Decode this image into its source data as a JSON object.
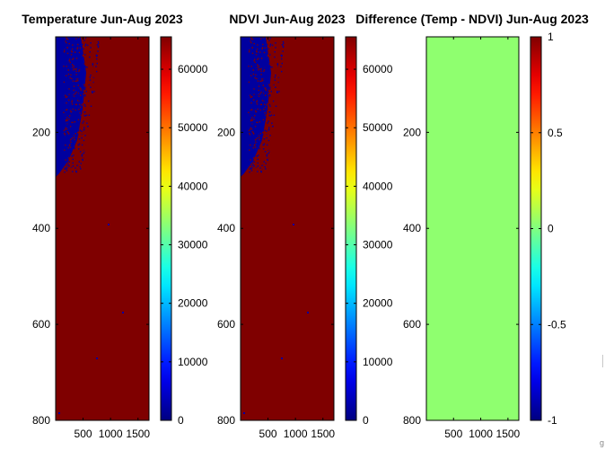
{
  "figure": {
    "background": "#ffffff",
    "colormap": "jet"
  },
  "chart_data": [
    {
      "type": "heatmap",
      "title": "Temperature Jun-Aug 2023",
      "xticks": [
        500,
        1000,
        1500
      ],
      "yticks": [
        200,
        400,
        600,
        800
      ],
      "xlim": [
        1,
        1700
      ],
      "ylim": [
        800,
        1
      ],
      "fill_value": 65535,
      "low_value": 0,
      "fill_color": "#7f0000",
      "low_color": "#00009f",
      "low_region": "upper-left wedge",
      "colorbar": {
        "ticks": [
          0,
          10000,
          20000,
          30000,
          40000,
          50000,
          60000
        ],
        "range": [
          0,
          65535
        ]
      }
    },
    {
      "type": "heatmap",
      "title": "NDVI Jun-Aug 2023",
      "xticks": [
        500,
        1000,
        1500
      ],
      "yticks": [
        200,
        400,
        600,
        800
      ],
      "xlim": [
        1,
        1700
      ],
      "ylim": [
        800,
        1
      ],
      "fill_value": 65535,
      "low_value": 0,
      "fill_color": "#7f0000",
      "low_color": "#00009f",
      "low_region": "upper-left wedge",
      "colorbar": {
        "ticks": [
          0,
          10000,
          20000,
          30000,
          40000,
          50000,
          60000
        ],
        "range": [
          0,
          65535
        ]
      }
    },
    {
      "type": "heatmap",
      "title": "Difference (Temp - NDVI) Jun-Aug 2023",
      "xticks": [
        500,
        1000,
        1500
      ],
      "yticks": [
        200,
        400,
        600,
        800
      ],
      "xlim": [
        1,
        1700
      ],
      "ylim": [
        800,
        1
      ],
      "fill_value": 0,
      "fill_color": "#8fff6f",
      "colorbar": {
        "ticks": [
          -1,
          -0.5,
          0,
          0.5,
          1
        ],
        "range": [
          -1,
          1
        ]
      }
    }
  ]
}
